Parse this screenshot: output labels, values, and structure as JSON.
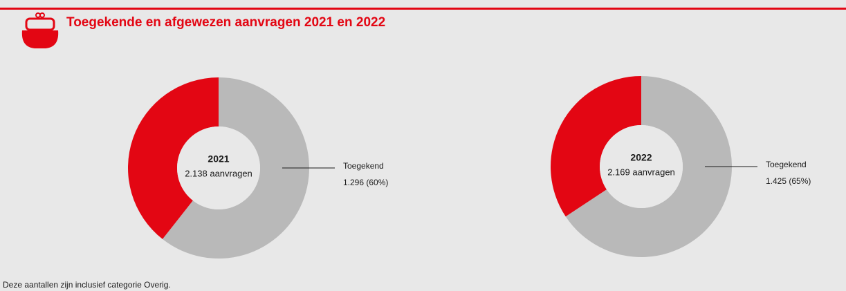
{
  "header": {
    "title": "Toegekende en afgewezen aanvragen 2021 en 2022"
  },
  "footnote": "Deze aantallen zijn inclusief categorie Overig.",
  "chart_data": [
    {
      "type": "donut",
      "center_title": "2021",
      "center_text": "2.138 aanvragen",
      "categories": [
        "Toegekend",
        null
      ],
      "values": [
        1296,
        842
      ],
      "value_labels": [
        "1.296 (60%)",
        null
      ],
      "colors": [
        "#b9b9b9",
        "#e30613"
      ]
    },
    {
      "type": "donut",
      "center_title": "2022",
      "center_text": "2.169 aanvragen",
      "categories": [
        "Toegekend",
        null
      ],
      "values": [
        1425,
        744
      ],
      "value_labels": [
        "1.425 (65%)",
        null
      ],
      "colors": [
        "#b9b9b9",
        "#e30613"
      ]
    }
  ]
}
